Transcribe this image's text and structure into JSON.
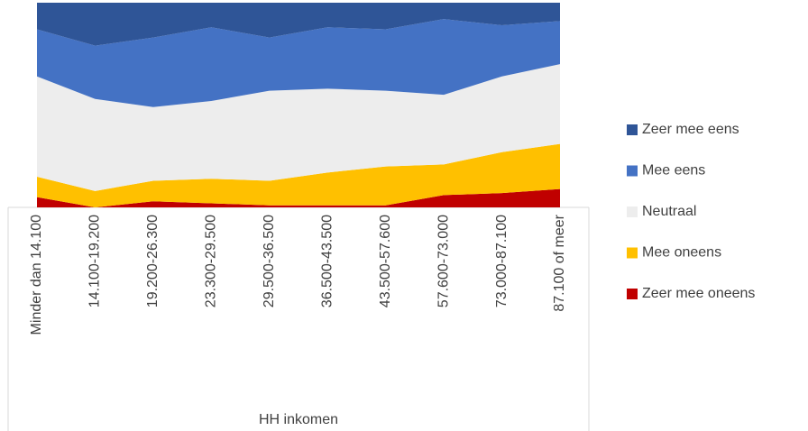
{
  "chart_data": {
    "type": "area",
    "stacked": true,
    "x_label": "HH inkomen",
    "categories": [
      "Minder dan 14.100",
      "14.100-19.200",
      "19.200-26.300",
      "23.300-29.500",
      "29.500-36.500",
      "36.500-43.500",
      "43.500-57.600",
      "57.600-73.000",
      "73.000-87.100",
      "87.100 of meer"
    ],
    "ylim": [
      0,
      100
    ],
    "legend": "right",
    "series": [
      {
        "name": "Zeer mee oneens",
        "color": "#c00000",
        "values": [
          5,
          0,
          3,
          2,
          1,
          1,
          1,
          6,
          7,
          9
        ]
      },
      {
        "name": "Mee oneens",
        "color": "#ffc000",
        "values": [
          10,
          8,
          10,
          12,
          12,
          16,
          19,
          15,
          20,
          22
        ]
      },
      {
        "name": "Neutraal",
        "color": "#ededed",
        "values": [
          49,
          45,
          36,
          38,
          44,
          41,
          37,
          34,
          37,
          39
        ]
      },
      {
        "name": "Mee eens",
        "color": "#4472c4",
        "values": [
          23,
          26,
          34,
          36,
          26,
          30,
          30,
          37,
          25,
          21
        ]
      },
      {
        "name": "Zeer mee eens",
        "color": "#2f5597",
        "values": [
          13,
          21,
          17,
          12,
          17,
          12,
          13,
          8,
          11,
          9
        ]
      }
    ]
  }
}
